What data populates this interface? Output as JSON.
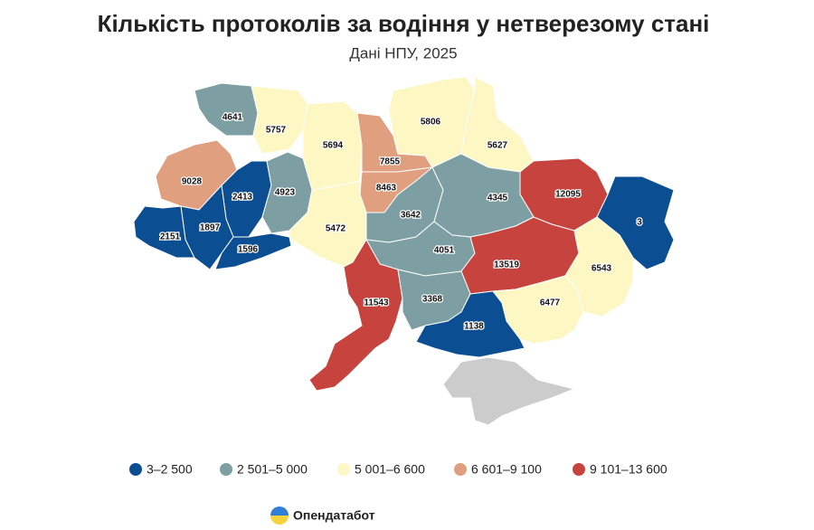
{
  "chart_data": {
    "type": "choropleth",
    "title": "Кількість протоколів за водіння у нетверезому стані",
    "subtitle": "Дані НПУ, 2025",
    "regions": [
      {
        "value": 4641,
        "color": "#7d9fa3"
      },
      {
        "value": 5757,
        "color": "#fcf7c3"
      },
      {
        "value": 5694,
        "color": "#fcf7c3"
      },
      {
        "value": 7855,
        "color": "#e0a07f"
      },
      {
        "value": 8463,
        "color": "#e0a07f"
      },
      {
        "value": 5806,
        "color": "#fcf7c3"
      },
      {
        "value": 5627,
        "color": "#fcf7c3"
      },
      {
        "value": 12095,
        "color": "#c6443d"
      },
      {
        "value": 3,
        "color": "#0b4f92"
      },
      {
        "value": 9028,
        "color": "#e0a07f"
      },
      {
        "value": 2413,
        "color": "#0b4f92"
      },
      {
        "value": 4923,
        "color": "#7d9fa3"
      },
      {
        "value": 1897,
        "color": "#0b4f92"
      },
      {
        "value": 2151,
        "color": "#0b4f92"
      },
      {
        "value": 1596,
        "color": "#0b4f92"
      },
      {
        "value": 5472,
        "color": "#fcf7c3"
      },
      {
        "value": 3642,
        "color": "#7d9fa3"
      },
      {
        "value": 4345,
        "color": "#7d9fa3"
      },
      {
        "value": 4051,
        "color": "#7d9fa3"
      },
      {
        "value": 13519,
        "color": "#c6443d"
      },
      {
        "value": 6543,
        "color": "#fcf7c3"
      },
      {
        "value": 11543,
        "color": "#c6443d"
      },
      {
        "value": 3368,
        "color": "#7d9fa3"
      },
      {
        "value": 6477,
        "color": "#fcf7c3"
      },
      {
        "value": 1138,
        "color": "#0b4f92"
      }
    ],
    "legend": [
      {
        "label": "3–2 500",
        "color": "#0b4f92"
      },
      {
        "label": "2 501–5 000",
        "color": "#7d9fa3"
      },
      {
        "label": "5 001–6 600",
        "color": "#fcf7c3"
      },
      {
        "label": "6 601–9 100",
        "color": "#e0a07f"
      },
      {
        "label": "9 101–13 600",
        "color": "#c6443d"
      }
    ],
    "brand": "Опендатабот"
  }
}
